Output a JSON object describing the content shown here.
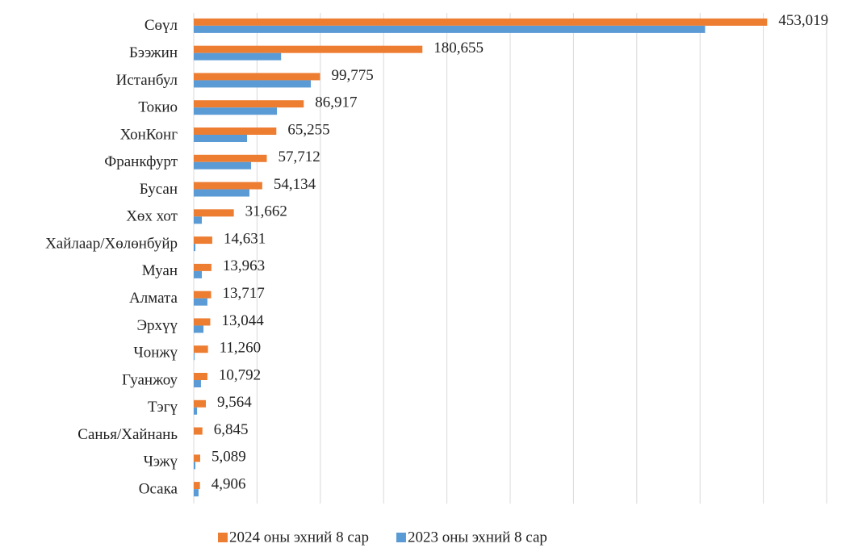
{
  "chart_data": {
    "type": "bar",
    "orientation": "horizontal",
    "categories": [
      "Сөүл",
      "Бээжин",
      "Истанбул",
      "Токио",
      "ХонКонг",
      "Франкфурт",
      "Бусан",
      "Хөх хот",
      "Хайлаар/Хөлөнбуйр",
      "Муан",
      "Алмата",
      "Эрхүү",
      "Чонжү",
      "Гуанжоу",
      "Тэгү",
      "Санья/Хайнань",
      "Чэжү",
      "Осака"
    ],
    "series": [
      {
        "name": "2024 оны эхний 8 сар",
        "color": "#ED7D31",
        "values": [
          453019,
          180655,
          99775,
          86917,
          65255,
          57712,
          54134,
          31662,
          14631,
          13963,
          13717,
          13044,
          11260,
          10792,
          9564,
          6845,
          5089,
          4906
        ],
        "value_labels": [
          "453,019",
          "180,655",
          "99,775",
          "86,917",
          "65,255",
          "57,712",
          "54,134",
          "31,662",
          "14,631",
          "13,963",
          "13,717",
          "13,044",
          "11,260",
          "10,792",
          "9,564",
          "6,845",
          "5,089",
          "4,906"
        ]
      },
      {
        "name": "2023 оны эхний 8 сар",
        "color": "#5B9BD5",
        "values": [
          404000,
          69000,
          92500,
          65700,
          42100,
          45300,
          44000,
          6400,
          1300,
          6400,
          10800,
          7700,
          600,
          5700,
          2600,
          0,
          1300,
          3800
        ]
      }
    ],
    "xlim": [
      0,
      500000
    ],
    "xticks": [
      0,
      50000,
      100000,
      150000,
      200000,
      250000,
      300000,
      350000,
      400000,
      450000,
      500000
    ],
    "grid": true,
    "legend": "bottom"
  }
}
